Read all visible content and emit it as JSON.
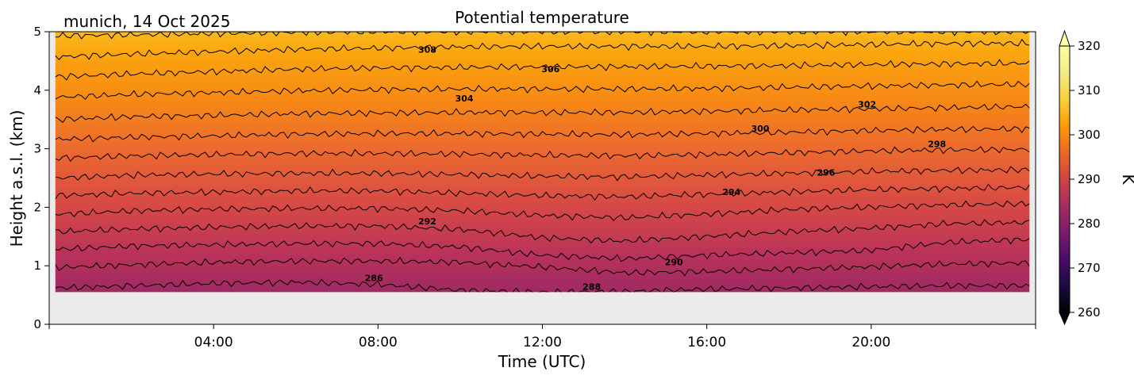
{
  "chart_data": {
    "type": "heatmap",
    "title": "Potential temperature",
    "subtitle": "munich, 14 Oct 2025",
    "xlabel": "Time (UTC)",
    "ylabel": "Height a.s.l. (km)",
    "x_unit": "hours UTC",
    "xlim": [
      0,
      24
    ],
    "ylim": [
      0,
      5
    ],
    "data_xlim": [
      0.15,
      23.85
    ],
    "data_ylim": [
      0.55,
      5.0
    ],
    "xticks": [
      {
        "value": 4,
        "label": "04:00"
      },
      {
        "value": 8,
        "label": "08:00"
      },
      {
        "value": 12,
        "label": "12:00"
      },
      {
        "value": 16,
        "label": "16:00"
      },
      {
        "value": 20,
        "label": "20:00"
      }
    ],
    "yticks": [
      {
        "value": 0,
        "label": "0"
      },
      {
        "value": 1,
        "label": "1"
      },
      {
        "value": 2,
        "label": "2"
      },
      {
        "value": 3,
        "label": "3"
      },
      {
        "value": 4,
        "label": "4"
      },
      {
        "value": 5,
        "label": "5"
      }
    ],
    "colorbar": {
      "label": "K",
      "colormap": "inferno",
      "range": [
        260,
        320
      ],
      "ticks": [
        "260",
        "270",
        "280",
        "290",
        "300",
        "310",
        "320"
      ],
      "extend": "both"
    },
    "missing_color": "#ebebeb",
    "contour_interval_K": 2,
    "contour_levels": [
      {
        "level": 286,
        "heights_km": [
          0.62,
          0.66,
          0.7,
          0.72,
          0.68,
          0.58,
          0.55,
          0.56,
          0.6,
          0.62,
          0.64,
          0.66,
          0.66
        ]
      },
      {
        "level": 288,
        "heights_km": [
          0.97,
          1.02,
          1.06,
          1.08,
          1.08,
          1.06,
          0.98,
          0.88,
          0.9,
          0.94,
          0.98,
          1.03,
          1.05
        ]
      },
      {
        "level": 290,
        "heights_km": [
          1.28,
          1.34,
          1.36,
          1.38,
          1.38,
          1.32,
          1.18,
          1.12,
          1.18,
          1.22,
          1.26,
          1.4,
          1.45
        ]
      },
      {
        "level": 292,
        "heights_km": [
          1.58,
          1.63,
          1.66,
          1.68,
          1.68,
          1.62,
          1.48,
          1.42,
          1.5,
          1.58,
          1.64,
          1.72,
          1.74
        ]
      },
      {
        "level": 294,
        "heights_km": [
          1.88,
          1.94,
          1.97,
          1.98,
          1.98,
          1.94,
          1.86,
          1.82,
          1.88,
          1.96,
          2.0,
          2.04,
          2.06
        ]
      },
      {
        "level": 296,
        "heights_km": [
          2.2,
          2.24,
          2.26,
          2.28,
          2.28,
          2.24,
          2.2,
          2.18,
          2.22,
          2.26,
          2.3,
          2.32,
          2.34
        ]
      },
      {
        "level": 298,
        "heights_km": [
          2.5,
          2.55,
          2.57,
          2.58,
          2.58,
          2.56,
          2.53,
          2.52,
          2.55,
          2.58,
          2.61,
          2.63,
          2.64
        ]
      },
      {
        "level": 300,
        "heights_km": [
          2.84,
          2.88,
          2.9,
          2.92,
          2.92,
          2.91,
          2.89,
          2.88,
          2.9,
          2.93,
          2.96,
          2.98,
          2.99
        ]
      },
      {
        "level": 302,
        "heights_km": [
          3.16,
          3.2,
          3.22,
          3.25,
          3.26,
          3.26,
          3.25,
          3.24,
          3.26,
          3.28,
          3.31,
          3.33,
          3.34
        ]
      },
      {
        "level": 304,
        "heights_km": [
          3.5,
          3.55,
          3.57,
          3.6,
          3.61,
          3.62,
          3.62,
          3.62,
          3.64,
          3.66,
          3.68,
          3.7,
          3.72
        ]
      },
      {
        "level": 306,
        "heights_km": [
          3.88,
          3.93,
          3.96,
          3.99,
          4.01,
          4.02,
          4.02,
          4.02,
          4.03,
          4.05,
          4.07,
          4.09,
          4.1
        ]
      },
      {
        "level": 308,
        "heights_km": [
          4.23,
          4.28,
          4.32,
          4.36,
          4.38,
          4.39,
          4.4,
          4.4,
          4.41,
          4.42,
          4.44,
          4.45,
          4.46
        ]
      },
      {
        "level": 310,
        "heights_km": [
          4.57,
          4.62,
          4.66,
          4.7,
          4.72,
          4.74,
          4.75,
          4.75,
          4.75,
          4.76,
          4.78,
          4.8,
          4.8
        ]
      },
      {
        "level": 312,
        "heights_km": [
          4.93,
          4.95,
          4.97,
          4.99,
          5.0,
          5.0,
          5.0,
          5.0,
          5.0,
          5.0,
          5.0,
          5.0,
          5.0
        ]
      }
    ],
    "contour_labels": [
      {
        "text": "286",
        "time_h": 7.9,
        "height_km": 0.78
      },
      {
        "text": "288",
        "time_h": 13.2,
        "height_km": 0.63
      },
      {
        "text": "290",
        "time_h": 15.2,
        "height_km": 1.05
      },
      {
        "text": "292",
        "time_h": 9.2,
        "height_km": 1.75
      },
      {
        "text": "294",
        "time_h": 16.6,
        "height_km": 2.25
      },
      {
        "text": "296",
        "time_h": 18.9,
        "height_km": 2.58
      },
      {
        "text": "298",
        "time_h": 21.6,
        "height_km": 3.07
      },
      {
        "text": "300",
        "time_h": 17.3,
        "height_km": 3.33
      },
      {
        "text": "302",
        "time_h": 19.9,
        "height_km": 3.75
      },
      {
        "text": "304",
        "time_h": 10.1,
        "height_km": 3.85
      },
      {
        "text": "306",
        "time_h": 12.2,
        "height_km": 4.35
      },
      {
        "text": "308",
        "time_h": 9.2,
        "height_km": 4.68
      }
    ]
  }
}
